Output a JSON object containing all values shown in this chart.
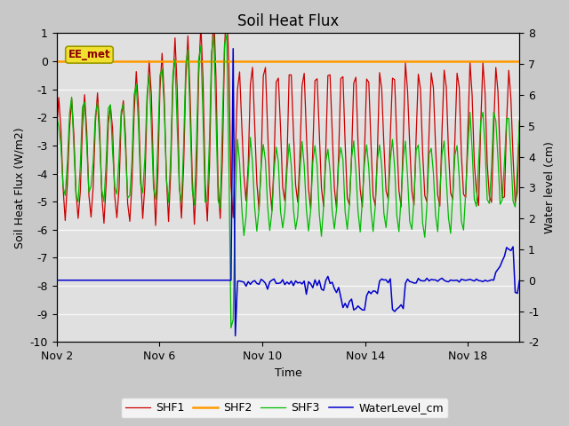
{
  "title": "Soil Heat Flux",
  "xlabel": "Time",
  "ylabel_left": "Soil Heat Flux (W/m2)",
  "ylabel_right": "Water level (cm)",
  "ylim_left": [
    -10.0,
    1.0
  ],
  "ylim_right": [
    -2.0,
    8.0
  ],
  "yticks_left": [
    -10.0,
    -9.0,
    -8.0,
    -7.0,
    -6.0,
    -5.0,
    -4.0,
    -3.0,
    -2.0,
    -1.0,
    0.0,
    1.0
  ],
  "yticks_right": [
    -2.0,
    -1.0,
    0.0,
    1.0,
    2.0,
    3.0,
    4.0,
    5.0,
    6.0,
    7.0,
    8.0
  ],
  "xtick_positions": [
    0,
    4,
    8,
    12,
    16
  ],
  "xtick_labels": [
    "Nov 2",
    "Nov 6",
    "Nov 10",
    "Nov 14",
    "Nov 18"
  ],
  "xlim": [
    0,
    18
  ],
  "colors": {
    "SHF1": "#cc0000",
    "SHF2": "#ff9900",
    "SHF3": "#00bb00",
    "WaterLevel": "#0000cc"
  },
  "legend_labels": [
    "SHF1",
    "SHF2",
    "SHF3",
    "WaterLevel_cm"
  ],
  "watermark_text": "EE_met",
  "watermark_fg": "#8B0000",
  "watermark_bg": "#f0e030",
  "watermark_edge": "#999900",
  "fig_bg": "#c8c8c8",
  "plot_bg": "#e0e0e0",
  "grid_color": "#f8f8f8",
  "title_fontsize": 12,
  "axis_fontsize": 9,
  "label_fontsize": 9
}
